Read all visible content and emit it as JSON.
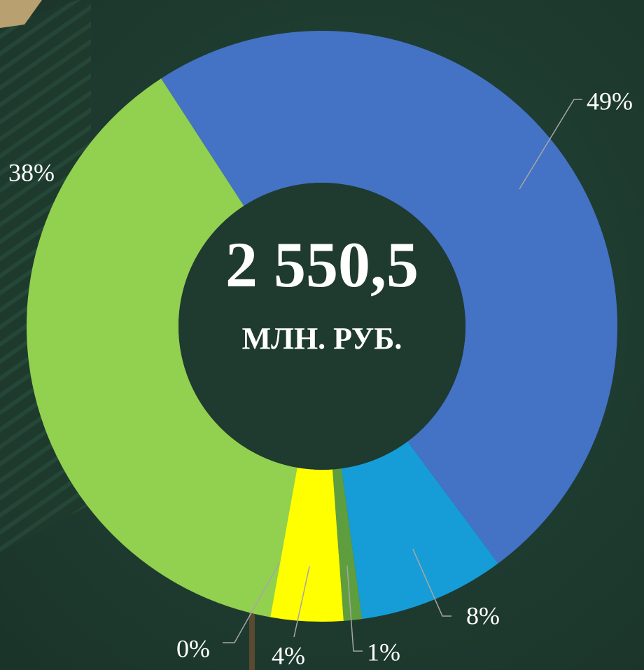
{
  "chart_data": {
    "type": "donut",
    "values": [
      49,
      8,
      1,
      4,
      0,
      38
    ],
    "value_labels": [
      "49%",
      "8%",
      "1%",
      "4%",
      "0%",
      "38%"
    ],
    "colors": [
      "#4472c4",
      "#169dd8",
      "#5f9e3e",
      "#ffff00",
      "#92d050",
      "#92d050"
    ],
    "center_value": "2 550,5",
    "center_unit": "МЛН. РУБ."
  }
}
